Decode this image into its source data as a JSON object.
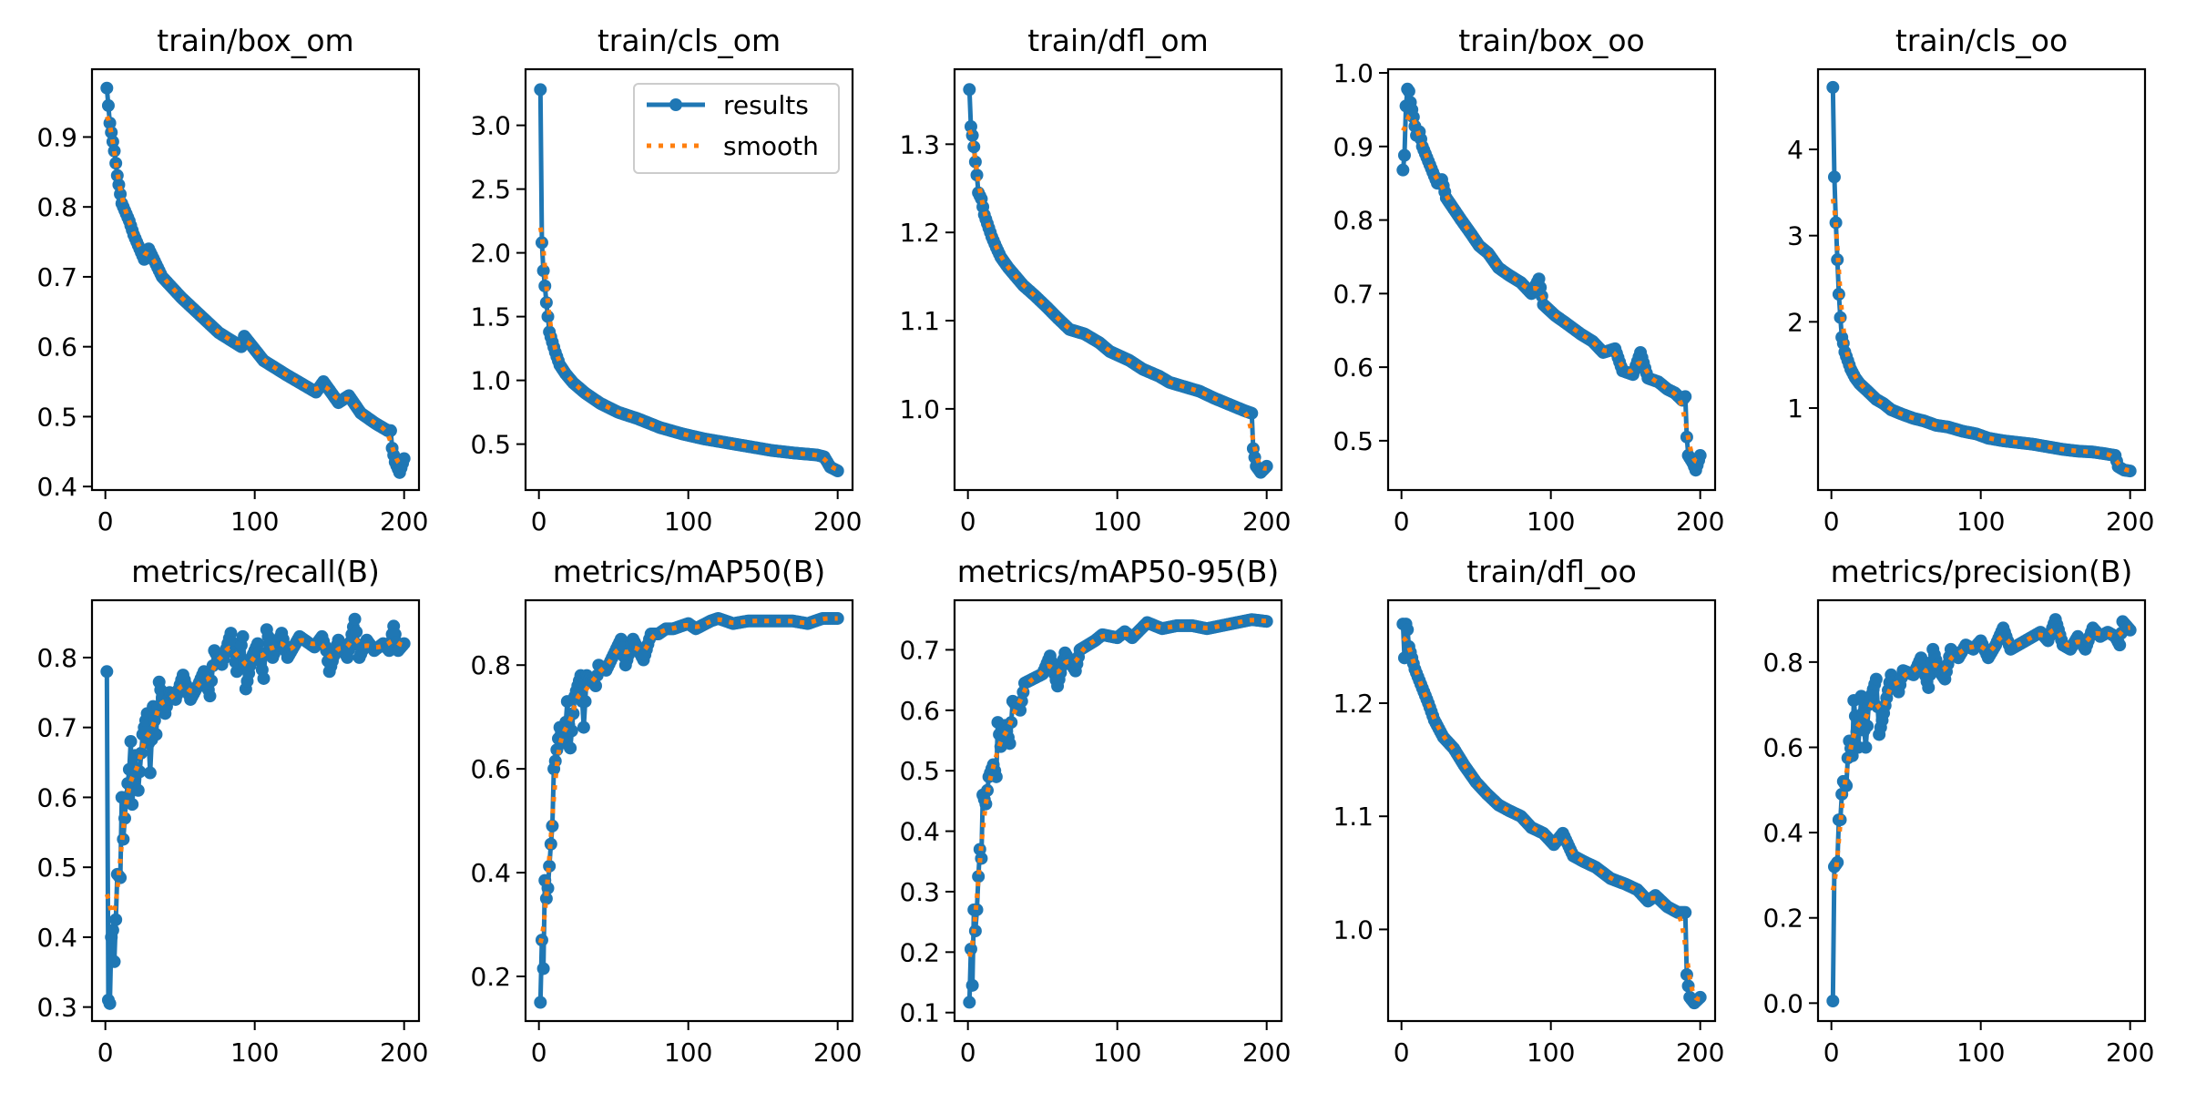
{
  "chart_data": [
    {
      "type": "line",
      "title": "train/box_om",
      "xlim": [
        -8.95,
        209.95
      ],
      "ylim": [
        0.395,
        0.997
      ],
      "xticks": [
        0,
        100,
        200
      ],
      "xtick_labels": [
        "0",
        "100",
        "200"
      ],
      "yticks": [
        0.4,
        0.5,
        0.6,
        0.7,
        0.8,
        0.9
      ],
      "ytick_labels": [
        "0.4",
        "0.5",
        "0.6",
        "0.7",
        "0.8",
        "0.9"
      ],
      "x": [
        1,
        3,
        6,
        8,
        11,
        16,
        19,
        26,
        29,
        38,
        51,
        61,
        76,
        91,
        93,
        106,
        121,
        141,
        146,
        156,
        163,
        171,
        181,
        189,
        191,
        192,
        194,
        197,
        200
      ],
      "y": [
        0.97,
        0.92,
        0.88,
        0.845,
        0.805,
        0.78,
        0.76,
        0.725,
        0.74,
        0.7,
        0.67,
        0.65,
        0.62,
        0.6,
        0.615,
        0.58,
        0.56,
        0.535,
        0.55,
        0.52,
        0.53,
        0.505,
        0.49,
        0.48,
        0.48,
        0.455,
        0.435,
        0.42,
        0.44
      ]
    },
    {
      "type": "line",
      "title": "train/cls_om",
      "xlim": [
        -8.95,
        209.95
      ],
      "ylim": [
        0.14,
        3.44
      ],
      "xticks": [
        0,
        100,
        200
      ],
      "xtick_labels": [
        "0",
        "100",
        "200"
      ],
      "yticks": [
        0.5,
        1.0,
        1.5,
        2.0,
        2.5,
        3.0
      ],
      "ytick_labels": [
        "0.5",
        "1.0",
        "1.5",
        "2.0",
        "2.5",
        "3.0"
      ],
      "legend": {
        "entries": [
          "results",
          "smooth"
        ],
        "location": "upper right"
      },
      "x": [
        1,
        2,
        3,
        4,
        5,
        6,
        7,
        9,
        11,
        14,
        18,
        23,
        31,
        41,
        53,
        66,
        81,
        96,
        111,
        126,
        141,
        156,
        171,
        186,
        191,
        195,
        200
      ],
      "y": [
        3.28,
        2.08,
        1.86,
        1.74,
        1.61,
        1.5,
        1.38,
        1.3,
        1.22,
        1.12,
        1.05,
        0.98,
        0.9,
        0.82,
        0.75,
        0.7,
        0.63,
        0.58,
        0.54,
        0.51,
        0.48,
        0.45,
        0.43,
        0.415,
        0.4,
        0.32,
        0.29
      ]
    },
    {
      "type": "line",
      "title": "train/dfl_om",
      "xlim": [
        -8.95,
        209.95
      ],
      "ylim": [
        0.908,
        1.385
      ],
      "xticks": [
        0,
        100,
        200
      ],
      "xtick_labels": [
        "0",
        "100",
        "200"
      ],
      "yticks": [
        1.0,
        1.1,
        1.2,
        1.3
      ],
      "ytick_labels": [
        "1.0",
        "1.1",
        "1.2",
        "1.3"
      ],
      "x": [
        1,
        2,
        3,
        4,
        5,
        6,
        7,
        9,
        11,
        13,
        16,
        19,
        22,
        27,
        32,
        37,
        45,
        53,
        60,
        68,
        78,
        88,
        95,
        108,
        117,
        128,
        135,
        145,
        155,
        165,
        175,
        185,
        190,
        191,
        193,
        196,
        200
      ],
      "y": [
        1.362,
        1.32,
        1.31,
        1.297,
        1.28,
        1.265,
        1.245,
        1.238,
        1.22,
        1.21,
        1.195,
        1.183,
        1.172,
        1.16,
        1.15,
        1.14,
        1.128,
        1.115,
        1.103,
        1.09,
        1.085,
        1.075,
        1.065,
        1.055,
        1.045,
        1.037,
        1.03,
        1.025,
        1.02,
        1.012,
        1.005,
        0.998,
        0.995,
        0.955,
        0.935,
        0.928,
        0.935
      ]
    },
    {
      "type": "line",
      "title": "train/box_oo",
      "xlim": [
        -8.95,
        209.95
      ],
      "ylim": [
        0.433,
        1.005
      ],
      "xticks": [
        0,
        100,
        200
      ],
      "xtick_labels": [
        "0",
        "100",
        "200"
      ],
      "yticks": [
        0.5,
        0.6,
        0.7,
        0.8,
        0.9,
        1.0
      ],
      "ytick_labels": [
        "0.5",
        "0.6",
        "0.7",
        "0.8",
        "0.9",
        "1.0"
      ],
      "x": [
        1,
        2,
        3,
        4,
        5,
        6,
        8,
        10,
        12,
        14,
        17,
        20,
        24,
        27,
        30,
        35,
        40,
        47,
        52,
        58,
        65,
        72,
        80,
        87,
        92,
        95,
        103,
        110,
        120,
        128,
        135,
        143,
        148,
        155,
        160,
        165,
        172,
        178,
        183,
        188,
        190,
        191,
        192,
        195,
        197,
        200
      ],
      "y": [
        0.868,
        0.888,
        0.955,
        0.978,
        0.975,
        0.96,
        0.94,
        0.915,
        0.92,
        0.9,
        0.885,
        0.87,
        0.85,
        0.855,
        0.83,
        0.815,
        0.8,
        0.78,
        0.765,
        0.755,
        0.735,
        0.725,
        0.715,
        0.7,
        0.72,
        0.685,
        0.67,
        0.66,
        0.645,
        0.635,
        0.62,
        0.625,
        0.595,
        0.59,
        0.62,
        0.585,
        0.58,
        0.57,
        0.565,
        0.555,
        0.56,
        0.505,
        0.48,
        0.47,
        0.46,
        0.48
      ]
    },
    {
      "type": "line",
      "title": "train/cls_oo",
      "xlim": [
        -8.95,
        209.95
      ],
      "ylim": [
        0.049,
        4.93
      ],
      "xticks": [
        0,
        100,
        200
      ],
      "xtick_labels": [
        "0",
        "100",
        "200"
      ],
      "yticks": [
        1,
        2,
        3,
        4
      ],
      "ytick_labels": [
        "1",
        "2",
        "3",
        "4"
      ],
      "x": [
        1,
        2,
        3,
        4,
        5,
        6,
        7,
        8,
        9,
        11,
        13,
        16,
        19,
        24,
        30,
        35,
        40,
        47,
        55,
        62,
        70,
        78,
        88,
        97,
        105,
        115,
        125,
        135,
        145,
        155,
        165,
        175,
        183,
        190,
        192,
        196,
        200
      ],
      "y": [
        4.72,
        3.68,
        3.15,
        2.72,
        2.32,
        2.05,
        1.82,
        1.75,
        1.65,
        1.55,
        1.45,
        1.35,
        1.28,
        1.2,
        1.1,
        1.05,
        0.98,
        0.93,
        0.88,
        0.85,
        0.8,
        0.78,
        0.73,
        0.7,
        0.65,
        0.62,
        0.6,
        0.58,
        0.55,
        0.52,
        0.5,
        0.49,
        0.47,
        0.45,
        0.32,
        0.28,
        0.27
      ]
    },
    {
      "type": "line",
      "title": "metrics/recall(B)",
      "xlim": [
        -8.95,
        209.95
      ],
      "ylim": [
        0.28,
        0.882
      ],
      "xticks": [
        0,
        100,
        200
      ],
      "xtick_labels": [
        "0",
        "100",
        "200"
      ],
      "yticks": [
        0.3,
        0.4,
        0.5,
        0.6,
        0.7,
        0.8
      ],
      "ytick_labels": [
        "0.3",
        "0.4",
        "0.5",
        "0.6",
        "0.7",
        "0.8"
      ],
      "x": [
        1,
        2,
        3,
        4,
        5,
        6,
        7,
        8,
        10,
        11,
        12,
        14,
        16,
        17,
        18,
        20,
        22,
        25,
        28,
        30,
        32,
        34,
        36,
        40,
        43,
        47,
        52,
        57,
        62,
        66,
        70,
        73,
        78,
        84,
        88,
        92,
        94,
        98,
        102,
        106,
        108,
        112,
        118,
        122,
        130,
        140,
        145,
        148,
        150,
        156,
        162,
        167,
        170,
        175,
        180,
        186,
        190,
        193,
        196,
        200
      ],
      "y": [
        0.78,
        0.31,
        0.305,
        0.4,
        0.41,
        0.365,
        0.425,
        0.49,
        0.485,
        0.6,
        0.54,
        0.6,
        0.64,
        0.68,
        0.59,
        0.66,
        0.61,
        0.69,
        0.72,
        0.635,
        0.73,
        0.69,
        0.765,
        0.72,
        0.75,
        0.74,
        0.775,
        0.74,
        0.76,
        0.78,
        0.745,
        0.81,
        0.79,
        0.835,
        0.78,
        0.83,
        0.755,
        0.8,
        0.82,
        0.77,
        0.84,
        0.8,
        0.835,
        0.8,
        0.83,
        0.815,
        0.83,
        0.81,
        0.78,
        0.825,
        0.8,
        0.855,
        0.8,
        0.825,
        0.81,
        0.82,
        0.81,
        0.845,
        0.81,
        0.82
      ]
    },
    {
      "type": "line",
      "title": "metrics/mAP50(B)",
      "xlim": [
        -8.95,
        209.95
      ],
      "ylim": [
        0.114,
        0.925
      ],
      "xticks": [
        0,
        100,
        200
      ],
      "xtick_labels": [
        "0",
        "100",
        "200"
      ],
      "yticks": [
        0.2,
        0.4,
        0.6,
        0.8
      ],
      "ytick_labels": [
        "0.2",
        "0.4",
        "0.6",
        "0.8"
      ],
      "x": [
        1,
        2,
        3,
        4,
        5,
        6,
        8,
        9,
        10,
        11,
        14,
        17,
        19,
        21,
        24,
        28,
        30,
        32,
        38,
        40,
        45,
        50,
        55,
        58,
        63,
        70,
        75,
        80,
        85,
        90,
        100,
        105,
        115,
        120,
        130,
        140,
        150,
        160,
        170,
        180,
        190,
        200
      ],
      "y": [
        0.15,
        0.27,
        0.215,
        0.385,
        0.35,
        0.37,
        0.455,
        0.49,
        0.6,
        0.615,
        0.68,
        0.65,
        0.73,
        0.64,
        0.74,
        0.78,
        0.68,
        0.78,
        0.76,
        0.8,
        0.79,
        0.82,
        0.85,
        0.8,
        0.85,
        0.81,
        0.86,
        0.86,
        0.87,
        0.87,
        0.88,
        0.87,
        0.885,
        0.89,
        0.88,
        0.885,
        0.885,
        0.885,
        0.885,
        0.88,
        0.89,
        0.89
      ]
    },
    {
      "type": "line",
      "title": "metrics/mAP50-95(B)",
      "xlim": [
        -8.95,
        209.95
      ],
      "ylim": [
        0.086,
        0.782
      ],
      "xticks": [
        0,
        100,
        200
      ],
      "xtick_labels": [
        "0",
        "100",
        "200"
      ],
      "yticks": [
        0.1,
        0.2,
        0.3,
        0.4,
        0.5,
        0.6,
        0.7
      ],
      "ytick_labels": [
        "0.1",
        "0.2",
        "0.3",
        "0.4",
        "0.5",
        "0.6",
        "0.7"
      ],
      "x": [
        1,
        2,
        3,
        4,
        5,
        6,
        7,
        8,
        9,
        10,
        12,
        14,
        17,
        19,
        20,
        22,
        25,
        28,
        30,
        35,
        38,
        42,
        50,
        55,
        60,
        65,
        72,
        75,
        85,
        90,
        100,
        105,
        110,
        120,
        130,
        140,
        150,
        160,
        170,
        180,
        190,
        200
      ],
      "y": [
        0.117,
        0.205,
        0.145,
        0.27,
        0.235,
        0.27,
        0.325,
        0.37,
        0.355,
        0.46,
        0.445,
        0.49,
        0.51,
        0.49,
        0.58,
        0.54,
        0.575,
        0.545,
        0.615,
        0.6,
        0.645,
        0.65,
        0.66,
        0.69,
        0.64,
        0.695,
        0.665,
        0.7,
        0.715,
        0.725,
        0.72,
        0.73,
        0.72,
        0.745,
        0.735,
        0.74,
        0.74,
        0.735,
        0.74,
        0.745,
        0.75,
        0.747
      ]
    },
    {
      "type": "line",
      "title": "train/dfl_oo",
      "xlim": [
        -8.95,
        209.95
      ],
      "ylim": [
        0.919,
        1.291
      ],
      "xticks": [
        0,
        100,
        200
      ],
      "xtick_labels": [
        "0",
        "100",
        "200"
      ],
      "yticks": [
        1.0,
        1.1,
        1.2
      ],
      "ytick_labels": [
        "1.0",
        "1.1",
        "1.2"
      ],
      "x": [
        1,
        2,
        3,
        4,
        5,
        6,
        9,
        12,
        15,
        18,
        22,
        28,
        35,
        42,
        50,
        57,
        65,
        72,
        80,
        87,
        95,
        102,
        108,
        115,
        122,
        130,
        140,
        150,
        158,
        165,
        170,
        178,
        185,
        190,
        191,
        193,
        196,
        200
      ],
      "y": [
        1.27,
        1.24,
        1.27,
        1.265,
        1.25,
        1.245,
        1.23,
        1.22,
        1.21,
        1.2,
        1.185,
        1.17,
        1.16,
        1.145,
        1.13,
        1.12,
        1.11,
        1.105,
        1.1,
        1.09,
        1.085,
        1.075,
        1.085,
        1.065,
        1.06,
        1.055,
        1.045,
        1.04,
        1.035,
        1.025,
        1.03,
        1.02,
        1.015,
        1.015,
        0.96,
        0.94,
        0.935,
        0.94
      ]
    },
    {
      "type": "line",
      "title": "metrics/precision(B)",
      "xlim": [
        -8.95,
        209.95
      ],
      "ylim": [
        -0.042,
        0.945
      ],
      "xticks": [
        0,
        100,
        200
      ],
      "xtick_labels": [
        "0",
        "100",
        "200"
      ],
      "yticks": [
        0.0,
        0.2,
        0.4,
        0.6,
        0.8
      ],
      "ytick_labels": [
        "0.0",
        "0.2",
        "0.4",
        "0.6",
        "0.8"
      ],
      "x": [
        1,
        2,
        4,
        5,
        6,
        7,
        8,
        10,
        11,
        12,
        14,
        15,
        18,
        20,
        23,
        25,
        30,
        32,
        35,
        40,
        45,
        48,
        55,
        60,
        65,
        68,
        72,
        76,
        80,
        85,
        90,
        95,
        100,
        105,
        110,
        115,
        120,
        130,
        140,
        145,
        150,
        155,
        160,
        165,
        170,
        175,
        180,
        185,
        190,
        193,
        195,
        200
      ],
      "y": [
        0.005,
        0.32,
        0.33,
        0.43,
        0.43,
        0.49,
        0.52,
        0.51,
        0.575,
        0.615,
        0.58,
        0.71,
        0.6,
        0.72,
        0.6,
        0.7,
        0.76,
        0.63,
        0.68,
        0.77,
        0.73,
        0.78,
        0.77,
        0.81,
        0.74,
        0.83,
        0.78,
        0.76,
        0.83,
        0.81,
        0.84,
        0.83,
        0.85,
        0.81,
        0.84,
        0.88,
        0.83,
        0.85,
        0.87,
        0.85,
        0.9,
        0.84,
        0.83,
        0.86,
        0.83,
        0.88,
        0.86,
        0.87,
        0.86,
        0.84,
        0.895,
        0.875
      ]
    }
  ],
  "colors": {
    "results": "#1f77b4",
    "smooth": "#ff7f0e",
    "axes": "#000000"
  }
}
